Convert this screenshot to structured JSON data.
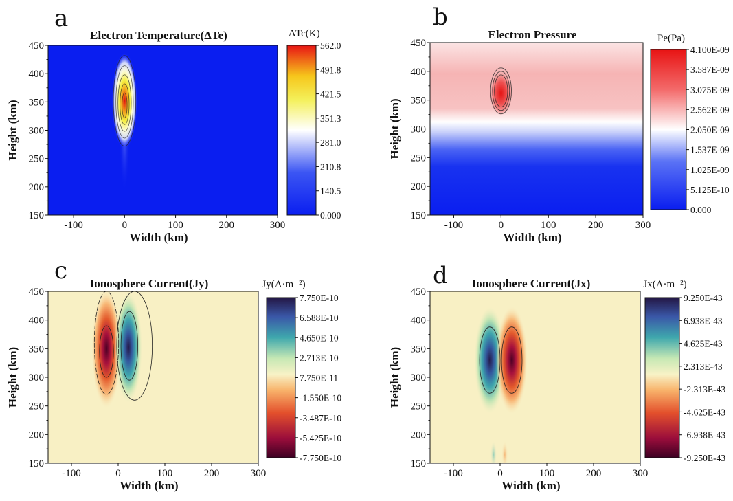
{
  "chart_data": [
    {
      "panel_label": "a",
      "type": "heatmap",
      "title": "Electron Temperature(ΔTe)",
      "xlabel": "Width (km)",
      "ylabel": "Height (km)",
      "xlim": [
        -150,
        300
      ],
      "ylim": [
        150,
        450
      ],
      "xticks": [
        "-100",
        "0",
        "100",
        "200",
        "300"
      ],
      "yticks": [
        "150",
        "200",
        "250",
        "300",
        "350",
        "400",
        "450"
      ],
      "colorbar_title": "ΔTc(K)",
      "colorbar_ticks": [
        "562.0",
        "491.8",
        "421.5",
        "351.3",
        "281.0",
        "210.8",
        "140.5",
        "0.000"
      ],
      "colormap": "blue-white-yellow-red",
      "peak": {
        "x": 0,
        "y": 345,
        "value": 562.0
      }
    },
    {
      "panel_label": "b",
      "type": "heatmap",
      "title": "Electron  Pressure",
      "xlabel": "Width (km)",
      "ylabel": "Height (km)",
      "xlim": [
        -150,
        300
      ],
      "ylim": [
        150,
        450
      ],
      "xticks": [
        "-100",
        "0",
        "100",
        "200",
        "300"
      ],
      "yticks": [
        "150",
        "200",
        "250",
        "300",
        "350",
        "400",
        "450"
      ],
      "colorbar_title": "Pe(Pa)",
      "colorbar_ticks": [
        "4.100E-09",
        "3.587E-09",
        "3.075E-09",
        "2.562E-09",
        "2.050E-09",
        "1.537E-09",
        "1.025E-09",
        "5.125E-10",
        "0.000"
      ],
      "colormap": "blue-white-red",
      "peak": {
        "x": 0,
        "y": 360,
        "value": 4.1e-09
      }
    },
    {
      "panel_label": "c",
      "type": "heatmap",
      "title": "Ionosphere Current(Jy)",
      "xlabel": "Width (km)",
      "ylabel": "Height (km)",
      "xlim": [
        -150,
        300
      ],
      "ylim": [
        150,
        450
      ],
      "xticks": [
        "-100",
        "0",
        "100",
        "200",
        "300"
      ],
      "yticks": [
        "150",
        "200",
        "250",
        "300",
        "350",
        "400",
        "450"
      ],
      "colorbar_title": "Jy(A·m⁻²)",
      "colorbar_ticks": [
        "7.750E-10",
        "6.588E-10",
        "4.650E-10",
        "2.713E-10",
        "7.750E-11",
        "-1.550E-10",
        "-3.487E-10",
        "-5.425E-10",
        "-7.750E-10"
      ],
      "colormap": "spectral",
      "extrema": [
        {
          "x": -25,
          "y": 345,
          "value": -7.75e-10
        },
        {
          "x": 22,
          "y": 350,
          "value": 7.75e-10
        }
      ]
    },
    {
      "panel_label": "d",
      "type": "heatmap",
      "title": "Ionosphere Current(Jx)",
      "xlabel": "Width (km)",
      "ylabel": "Height (km)",
      "xlim": [
        -150,
        300
      ],
      "ylim": [
        150,
        450
      ],
      "xticks": [
        "-100",
        "0",
        "100",
        "200",
        "300"
      ],
      "yticks": [
        "150",
        "200",
        "250",
        "300",
        "350",
        "400",
        "450"
      ],
      "colorbar_title": "Jx(A·m⁻²)",
      "colorbar_ticks": [
        "9.250E-43",
        "6.938E-43",
        "4.625E-43",
        "2.313E-43",
        "-2.313E-43",
        "-4.625E-43",
        "-6.938E-43",
        "-9.250E-43"
      ],
      "colormap": "spectral",
      "extrema": [
        {
          "x": -22,
          "y": 330,
          "value": 9.25e-43
        },
        {
          "x": 25,
          "y": 330,
          "value": -9.25e-43
        }
      ]
    }
  ]
}
